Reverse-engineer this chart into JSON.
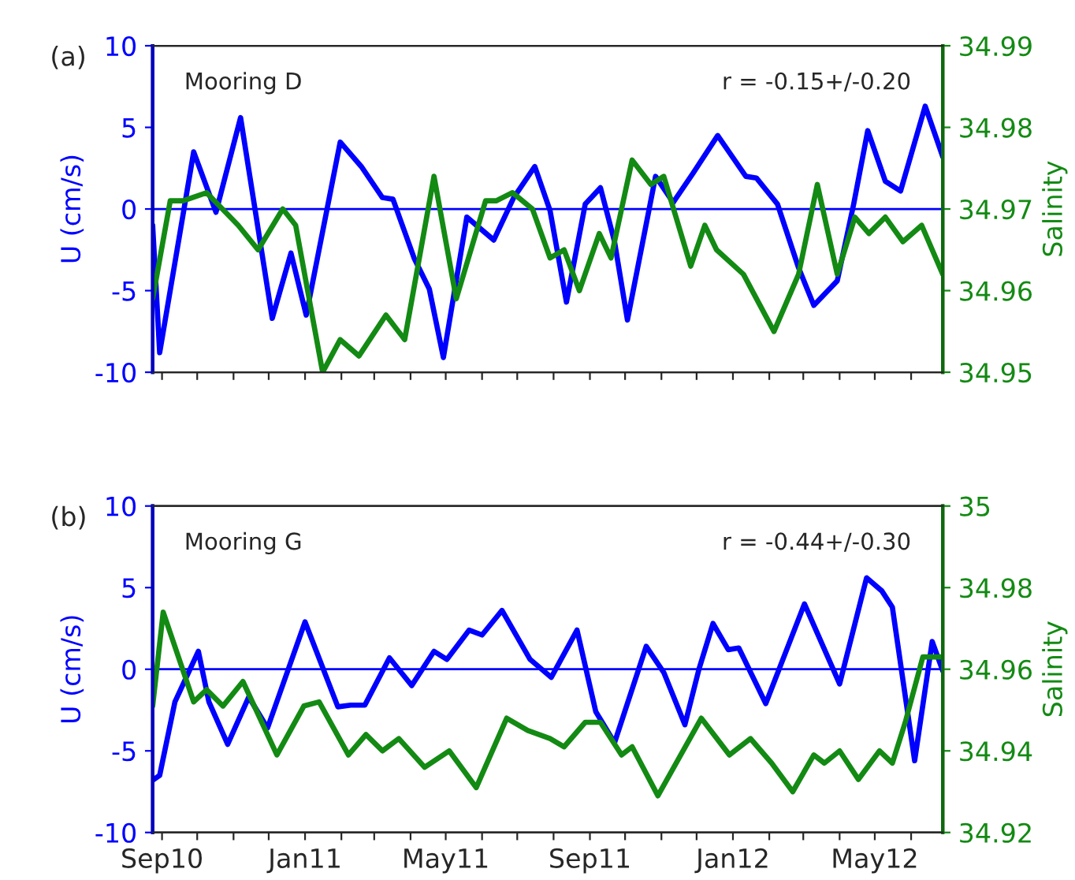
{
  "chart_data": [
    {
      "type": "line",
      "ylabel": "U (cm/s)",
      "y2label": "Salinity",
      "annotations": [
        "(a)",
        "Mooring D",
        "r = -0.15+/-0.20"
      ],
      "xlim": [
        "2010-08-24",
        "2012-06-28"
      ],
      "xticks": [
        {
          "value": "2010-09-01",
          "label": null
        },
        {
          "value": "2010-10-01",
          "label": null
        },
        {
          "value": "2010-11-01",
          "label": null
        },
        {
          "value": "2010-12-01",
          "label": null
        },
        {
          "value": "2011-01-01",
          "label": null
        },
        {
          "value": "2011-02-01",
          "label": null
        },
        {
          "value": "2011-03-01",
          "label": null
        },
        {
          "value": "2011-04-01",
          "label": null
        },
        {
          "value": "2011-05-01",
          "label": null
        },
        {
          "value": "2011-06-01",
          "label": null
        },
        {
          "value": "2011-07-01",
          "label": null
        },
        {
          "value": "2011-08-01",
          "label": null
        },
        {
          "value": "2011-09-01",
          "label": null
        },
        {
          "value": "2011-10-01",
          "label": null
        },
        {
          "value": "2011-11-01",
          "label": null
        },
        {
          "value": "2011-12-01",
          "label": null
        },
        {
          "value": "2012-01-01",
          "label": null
        },
        {
          "value": "2012-02-01",
          "label": null
        },
        {
          "value": "2012-03-01",
          "label": null
        },
        {
          "value": "2012-04-01",
          "label": null
        },
        {
          "value": "2012-05-01",
          "label": null
        },
        {
          "value": "2012-06-01",
          "label": null
        }
      ],
      "ylim": [
        -10,
        10
      ],
      "yticks": [
        -10,
        -5,
        0,
        5,
        10
      ],
      "y2lim": [
        34.95,
        34.99
      ],
      "y2ticks": [
        34.95,
        34.96,
        34.97,
        34.98,
        34.99
      ],
      "tick_labels": "y",
      "grid": false,
      "legend": false,
      "line_style": "solid",
      "marker": "none",
      "ref_lines": [
        {
          "axis": "y",
          "value": 0,
          "color": "#0000ff"
        }
      ],
      "series": [
        {
          "color": "#0000ff",
          "x": [
            "2010-08-24",
            "2010-08-30",
            "2010-09-28",
            "2010-10-17",
            "2010-11-07",
            "2010-12-04",
            "2010-12-20",
            "2011-01-02",
            "2011-01-31",
            "2011-02-18",
            "2011-03-08",
            "2011-03-17",
            "2011-04-04",
            "2011-04-17",
            "2011-04-29",
            "2011-05-19",
            "2011-06-11",
            "2011-06-28",
            "2011-07-16",
            "2011-07-29",
            "2011-08-12",
            "2011-08-28",
            "2011-09-10",
            "2011-09-22",
            "2011-10-03",
            "2011-10-27",
            "2011-11-11",
            "2011-11-28",
            "2011-12-19",
            "2012-01-12",
            "2012-01-21",
            "2012-02-08",
            "2012-02-26",
            "2012-03-10",
            "2012-03-30",
            "2012-04-13",
            "2012-04-25",
            "2012-05-10",
            "2012-05-23",
            "2012-06-13",
            "2012-06-28"
          ],
          "values": [
            -1,
            -8.8,
            3.5,
            -0.2,
            5.6,
            -6.7,
            -2.7,
            -6.5,
            4.1,
            2.6,
            0.7,
            0.6,
            -3,
            -4.9,
            -9.1,
            -0.5,
            -1.9,
            0.7,
            2.6,
            -0.1,
            -5.7,
            0.3,
            1.3,
            -2,
            -6.8,
            2.0,
            0.4,
            2.2,
            4.5,
            2.0,
            1.9,
            0.3,
            -3.6,
            -5.9,
            -4.4,
            0.3,
            4.8,
            1.7,
            1.1,
            6.3,
            3.2
          ]
        },
        {
          "color": "#138a13",
          "axis": "y2",
          "x": [
            "2010-08-24",
            "2010-09-08",
            "2010-09-19",
            "2010-10-09",
            "2010-11-05",
            "2010-11-22",
            "2010-12-13",
            "2010-12-24",
            "2011-01-16",
            "2011-01-31",
            "2011-02-16",
            "2011-03-11",
            "2011-03-27",
            "2011-04-21",
            "2011-05-10",
            "2011-06-04",
            "2011-06-13",
            "2011-06-27",
            "2011-07-14",
            "2011-07-29",
            "2011-08-10",
            "2011-08-23",
            "2011-09-09",
            "2011-09-19",
            "2011-10-07",
            "2011-10-23",
            "2011-11-03",
            "2011-11-26",
            "2011-12-08",
            "2011-12-18",
            "2012-01-10",
            "2012-02-05",
            "2012-02-26",
            "2012-03-13",
            "2012-03-30",
            "2012-04-14",
            "2012-04-26",
            "2012-05-10",
            "2012-05-25",
            "2012-06-10",
            "2012-06-28"
          ],
          "values": [
            34.959,
            34.971,
            34.971,
            34.972,
            34.968,
            34.965,
            34.97,
            34.968,
            34.95,
            34.954,
            34.952,
            34.957,
            34.954,
            34.974,
            34.959,
            34.971,
            34.971,
            34.972,
            34.97,
            34.964,
            34.965,
            34.96,
            34.967,
            34.964,
            34.976,
            34.973,
            34.974,
            34.963,
            34.968,
            34.965,
            34.962,
            34.955,
            34.962,
            34.973,
            34.962,
            34.969,
            34.967,
            34.969,
            34.966,
            34.968,
            34.962
          ]
        }
      ]
    },
    {
      "type": "line",
      "ylabel": "U (cm/s)",
      "y2label": "Salinity",
      "annotations": [
        "(b)",
        "Mooring G",
        "r = -0.44+/-0.30"
      ],
      "xlim": [
        "2010-08-24",
        "2012-06-28"
      ],
      "xticks": [
        {
          "value": "2010-09-01",
          "label": "Sep10"
        },
        {
          "value": "2010-10-01",
          "label": null
        },
        {
          "value": "2010-11-01",
          "label": null
        },
        {
          "value": "2010-12-01",
          "label": null
        },
        {
          "value": "2011-01-01",
          "label": "Jan11"
        },
        {
          "value": "2011-02-01",
          "label": null
        },
        {
          "value": "2011-03-01",
          "label": null
        },
        {
          "value": "2011-04-01",
          "label": null
        },
        {
          "value": "2011-05-01",
          "label": "May11"
        },
        {
          "value": "2011-06-01",
          "label": null
        },
        {
          "value": "2011-07-01",
          "label": null
        },
        {
          "value": "2011-08-01",
          "label": null
        },
        {
          "value": "2011-09-01",
          "label": "Sep11"
        },
        {
          "value": "2011-10-01",
          "label": null
        },
        {
          "value": "2011-11-01",
          "label": null
        },
        {
          "value": "2011-12-01",
          "label": null
        },
        {
          "value": "2012-01-01",
          "label": "Jan12"
        },
        {
          "value": "2012-02-01",
          "label": null
        },
        {
          "value": "2012-03-01",
          "label": null
        },
        {
          "value": "2012-04-01",
          "label": null
        },
        {
          "value": "2012-05-01",
          "label": "May12"
        },
        {
          "value": "2012-06-01",
          "label": null
        }
      ],
      "ylim": [
        -10,
        10
      ],
      "yticks": [
        -10,
        -5,
        0,
        5,
        10
      ],
      "y2lim": [
        34.92,
        35
      ],
      "y2ticks": [
        34.92,
        34.94,
        34.96,
        34.98,
        35
      ],
      "grid": false,
      "legend": false,
      "line_style": "solid",
      "marker": "none",
      "ref_lines": [
        {
          "axis": "y",
          "value": 0,
          "color": "#0000ff"
        }
      ],
      "series": [
        {
          "color": "#0000ff",
          "x": [
            "2010-08-24",
            "2010-08-30",
            "2010-09-12",
            "2010-10-02",
            "2010-10-11",
            "2010-10-27",
            "2010-11-14",
            "2010-11-30",
            "2011-01-01",
            "2011-01-29",
            "2011-02-09",
            "2011-02-21",
            "2011-03-14",
            "2011-04-02",
            "2011-04-21",
            "2011-05-02",
            "2011-05-21",
            "2011-06-01",
            "2011-06-18",
            "2011-07-12",
            "2011-07-30",
            "2011-08-21",
            "2011-09-06",
            "2011-09-22",
            "2011-10-19",
            "2011-11-03",
            "2011-11-21",
            "2011-12-03",
            "2011-12-15",
            "2011-12-28",
            "2012-01-06",
            "2012-01-29",
            "2012-03-02",
            "2012-04-01",
            "2012-04-24",
            "2012-05-07",
            "2012-05-16",
            "2012-06-04",
            "2012-06-19",
            "2012-06-28"
          ],
          "values": [
            -6.8,
            -6.5,
            -2,
            1.1,
            -2,
            -4.6,
            -1.7,
            -3.6,
            2.9,
            -2.3,
            -2.2,
            -2.2,
            0.7,
            -1,
            1.1,
            0.6,
            2.4,
            2.1,
            3.6,
            0.6,
            -0.5,
            2.4,
            -2.6,
            -4.5,
            1.4,
            -0.2,
            -3.4,
            0,
            2.8,
            1.2,
            1.3,
            -2.1,
            4.0,
            -0.9,
            5.6,
            4.8,
            3.8,
            -5.6,
            1.7,
            -0.1
          ]
        },
        {
          "color": "#138a13",
          "axis": "y2",
          "x": [
            "2010-08-24",
            "2010-09-02",
            "2010-09-28",
            "2010-10-09",
            "2010-10-23",
            "2010-11-09",
            "2010-12-08",
            "2010-12-31",
            "2011-01-13",
            "2011-02-07",
            "2011-02-22",
            "2011-03-08",
            "2011-03-22",
            "2011-04-13",
            "2011-05-04",
            "2011-05-27",
            "2011-06-22",
            "2011-07-10",
            "2011-07-29",
            "2011-08-10",
            "2011-08-28",
            "2011-09-10",
            "2011-09-28",
            "2011-10-07",
            "2011-10-29",
            "2011-12-05",
            "2011-12-29",
            "2012-01-16",
            "2012-02-03",
            "2012-02-21",
            "2012-03-10",
            "2012-03-19",
            "2012-04-01",
            "2012-04-17",
            "2012-05-05",
            "2012-05-16",
            "2012-05-27",
            "2012-06-11",
            "2012-06-28"
          ],
          "values": [
            34.951,
            34.974,
            34.952,
            34.955,
            34.951,
            34.957,
            34.939,
            34.951,
            34.952,
            34.939,
            34.944,
            34.94,
            34.943,
            34.936,
            34.94,
            34.931,
            34.948,
            34.945,
            34.943,
            34.941,
            34.947,
            34.947,
            34.939,
            34.941,
            34.929,
            34.948,
            34.939,
            34.943,
            34.937,
            34.93,
            34.939,
            34.937,
            34.94,
            34.933,
            34.94,
            34.937,
            34.947,
            34.963,
            34.963
          ]
        }
      ]
    }
  ]
}
